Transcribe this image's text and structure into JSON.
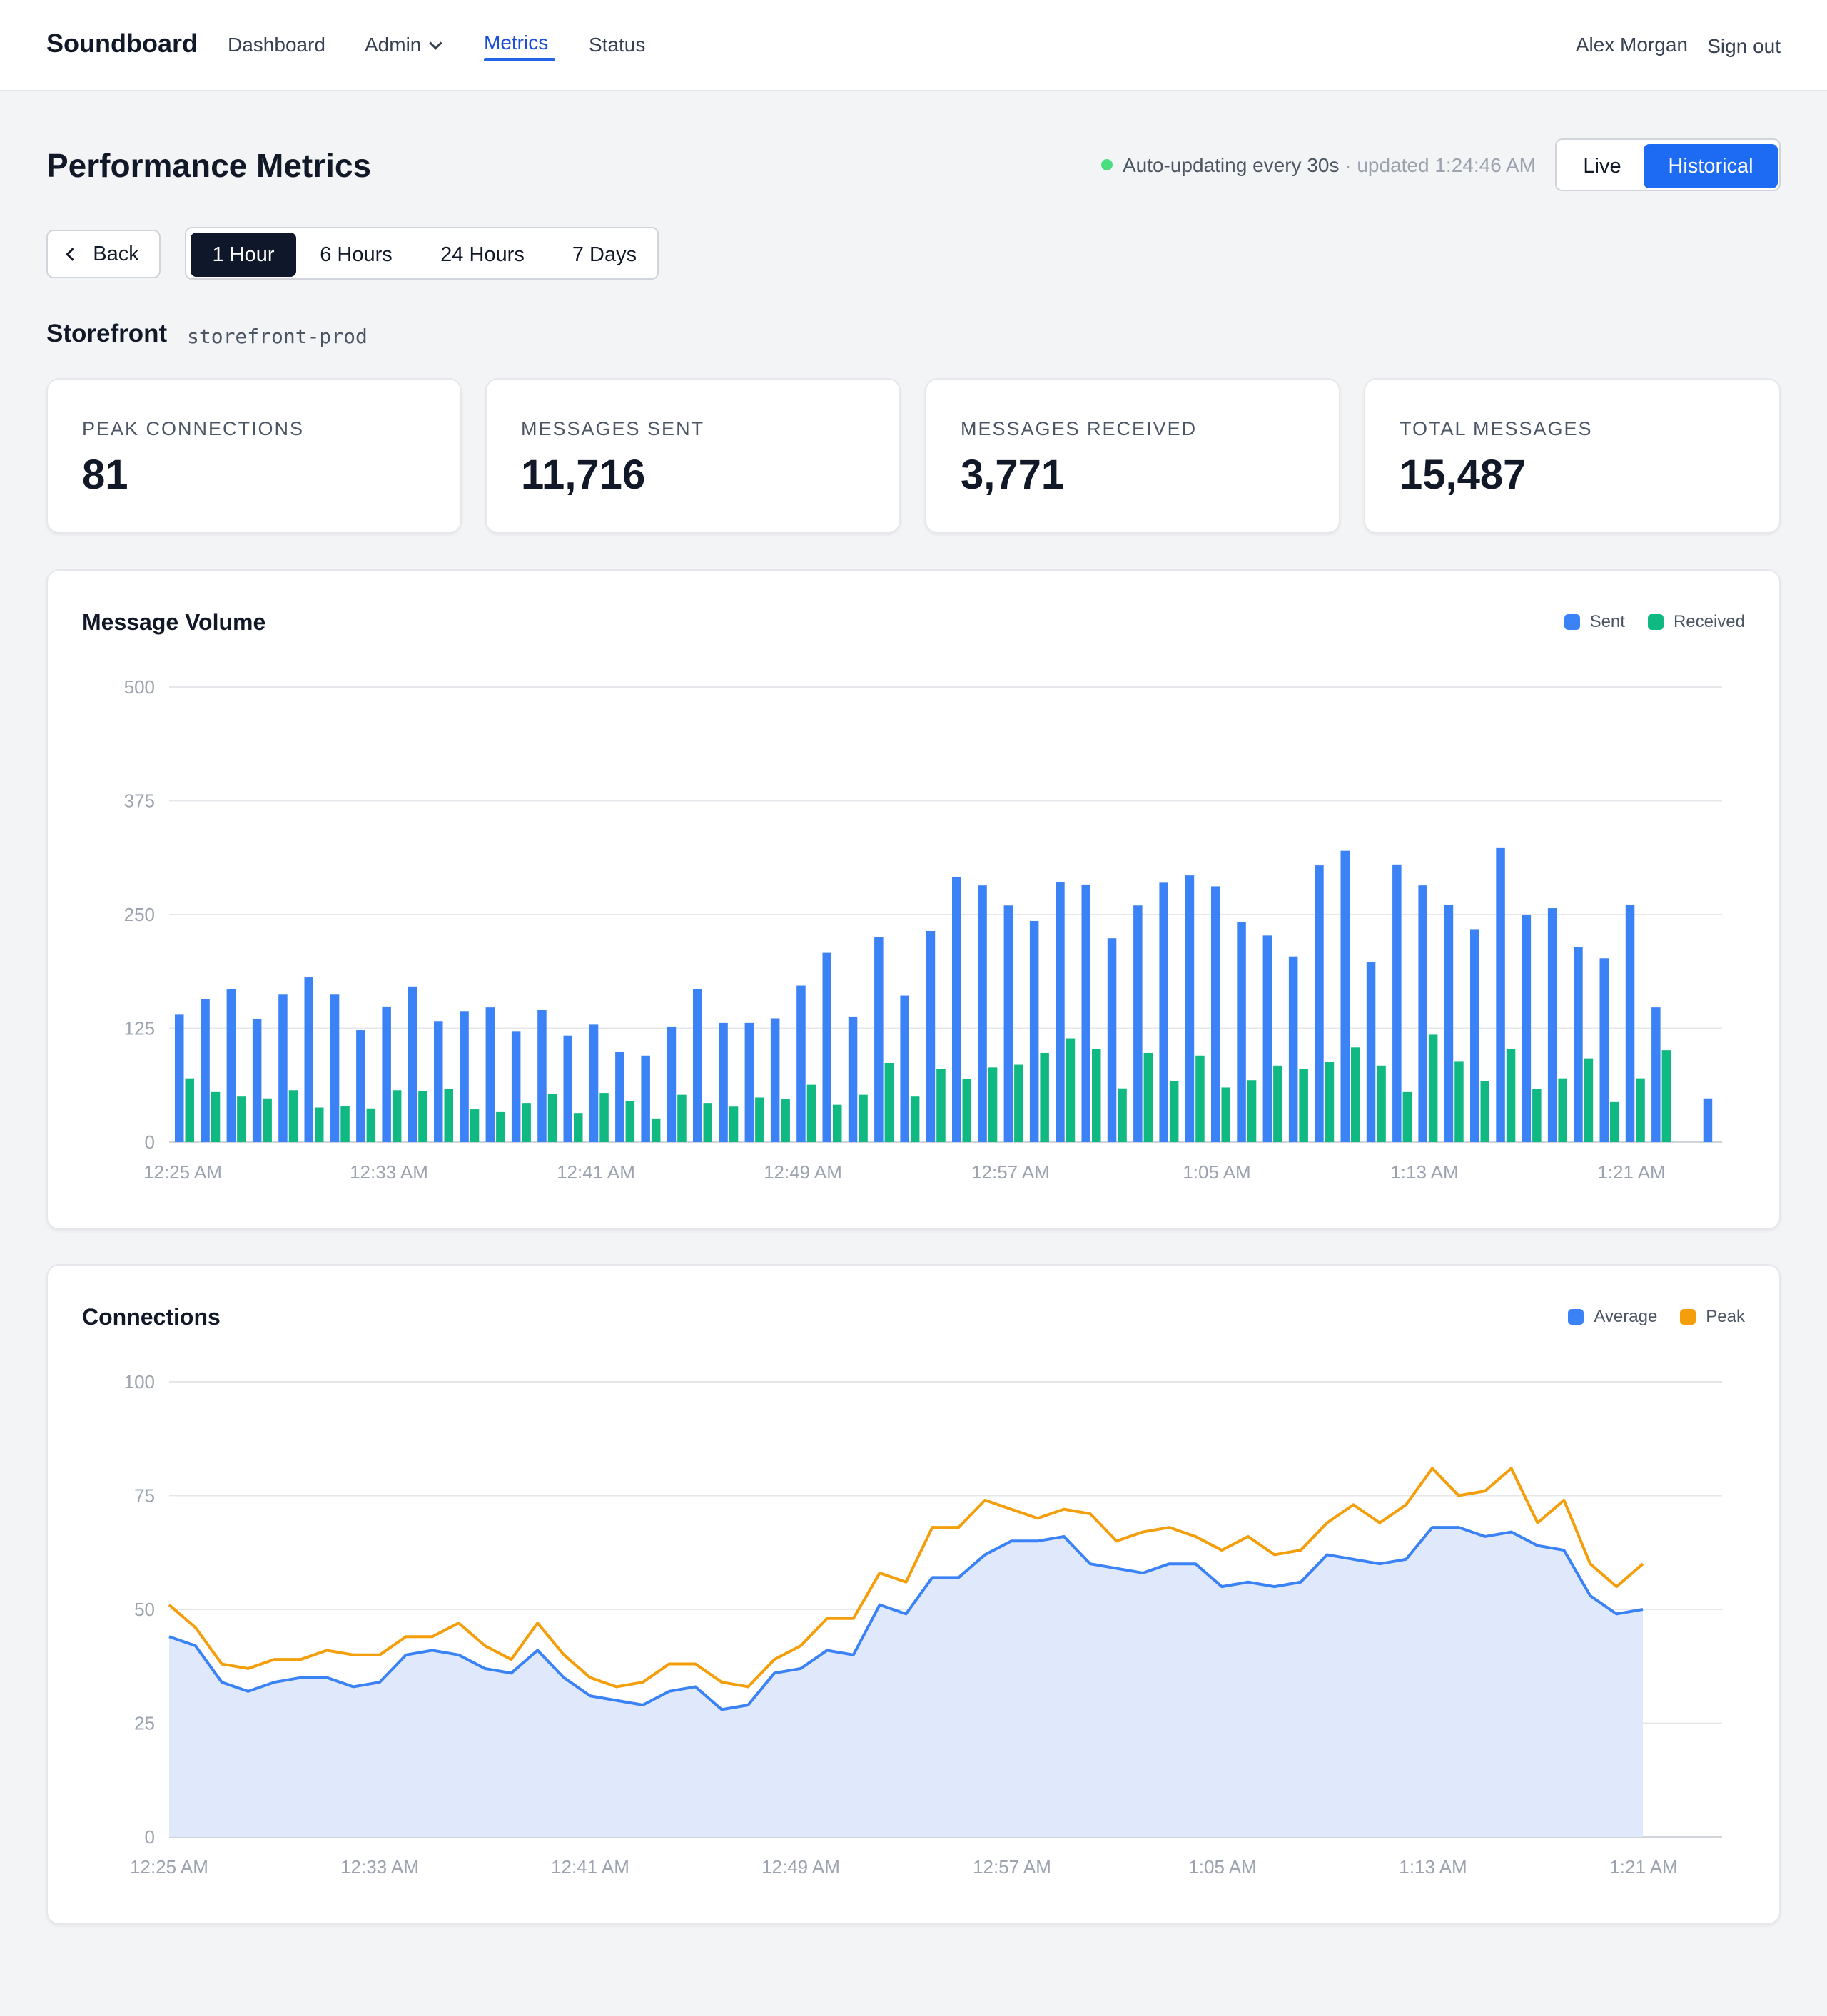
{
  "topbar": {
    "brand": "Soundboard",
    "nav": [
      {
        "label": "Dashboard"
      },
      {
        "label": "Admin"
      },
      {
        "label": "Metrics"
      },
      {
        "label": "Status"
      }
    ],
    "user": "Alex Morgan",
    "signout": "Sign out"
  },
  "header": {
    "title": "Performance Metrics",
    "status_text": "Auto-updating every 30s",
    "status_sub": " · updated 1:24:46 AM",
    "status_dot_color": "#4ade80",
    "modes": {
      "live": "Live",
      "historical": "Historical",
      "selected": "Historical"
    }
  },
  "controls": {
    "back": "Back",
    "ranges": [
      "1 Hour",
      "6 Hours",
      "24 Hours",
      "7 Days"
    ],
    "selected_range": "1 Hour"
  },
  "service": {
    "name": "Storefront",
    "id": "storefront-prod"
  },
  "stats": [
    {
      "label": "PEAK CONNECTIONS",
      "value": "81"
    },
    {
      "label": "MESSAGES SENT",
      "value": "11,716"
    },
    {
      "label": "MESSAGES RECEIVED",
      "value": "3,771"
    },
    {
      "label": "TOTAL MESSAGES",
      "value": "15,487"
    }
  ],
  "chart_data": [
    {
      "type": "bar",
      "title": "Message Volume",
      "ylim": [
        0,
        500
      ],
      "yticks": [
        "0",
        "125",
        "250",
        "375",
        "500"
      ],
      "xticks": [
        "12:25 AM",
        "12:33 AM",
        "12:41 AM",
        "12:49 AM",
        "12:57 AM",
        "1:05 AM",
        "1:13 AM",
        "1:21 AM"
      ],
      "grid": true,
      "legend_position": "top-right",
      "series": [
        {
          "name": "Sent",
          "color": "#3b82f6",
          "values": [
            140,
            157,
            168,
            135,
            162,
            181,
            162,
            123,
            149,
            171,
            133,
            144,
            148,
            122,
            145,
            117,
            129,
            99,
            95,
            127,
            168,
            131,
            131,
            136,
            172,
            208,
            138,
            225,
            161,
            232,
            291,
            282,
            260,
            243,
            286,
            283,
            224,
            260,
            285,
            293,
            281,
            242,
            227,
            204,
            304,
            320,
            198,
            305,
            282,
            261,
            234,
            323,
            250,
            257,
            214,
            202,
            261,
            148,
            0,
            48
          ]
        },
        {
          "name": "Received",
          "color": "#10b981",
          "values": [
            70,
            55,
            50,
            48,
            57,
            38,
            40,
            37,
            57,
            56,
            58,
            36,
            33,
            43,
            53,
            32,
            54,
            45,
            26,
            52,
            43,
            39,
            49,
            47,
            63,
            41,
            52,
            87,
            50,
            80,
            69,
            82,
            85,
            98,
            114,
            102,
            59,
            98,
            67,
            95,
            60,
            68,
            84,
            80,
            88,
            104,
            84,
            55,
            118,
            89,
            67,
            102,
            58,
            70,
            92,
            44,
            70,
            101,
            0,
            0
          ]
        }
      ]
    },
    {
      "type": "line",
      "title": "Connections",
      "ylim": [
        0,
        100
      ],
      "yticks": [
        "0",
        "25",
        "50",
        "75",
        "100"
      ],
      "xticks": [
        "12:25 AM",
        "12:33 AM",
        "12:41 AM",
        "12:49 AM",
        "12:57 AM",
        "1:05 AM",
        "1:13 AM",
        "1:21 AM"
      ],
      "grid": true,
      "legend_position": "top-right",
      "series": [
        {
          "name": "Average",
          "color": "#3b82f6",
          "fill": "#dfe9fb",
          "values": [
            44,
            42,
            34,
            32,
            34,
            35,
            35,
            33,
            34,
            40,
            41,
            40,
            37,
            36,
            41,
            35,
            31,
            30,
            29,
            32,
            33,
            28,
            29,
            36,
            37,
            41,
            40,
            51,
            49,
            57,
            57,
            62,
            65,
            65,
            66,
            60,
            59,
            58,
            60,
            60,
            55,
            56,
            55,
            56,
            62,
            61,
            60,
            61,
            68,
            68,
            66,
            67,
            64,
            63,
            53,
            49,
            50
          ]
        },
        {
          "name": "Peak",
          "color": "#f59e0b",
          "values": [
            51,
            46,
            38,
            37,
            39,
            39,
            41,
            40,
            40,
            44,
            44,
            47,
            42,
            39,
            47,
            40,
            35,
            33,
            34,
            38,
            38,
            34,
            33,
            39,
            42,
            48,
            48,
            58,
            56,
            68,
            68,
            74,
            72,
            70,
            72,
            71,
            65,
            67,
            68,
            66,
            63,
            66,
            62,
            63,
            69,
            73,
            69,
            73,
            81,
            75,
            76,
            81,
            69,
            74,
            60,
            55,
            60
          ]
        }
      ]
    }
  ]
}
